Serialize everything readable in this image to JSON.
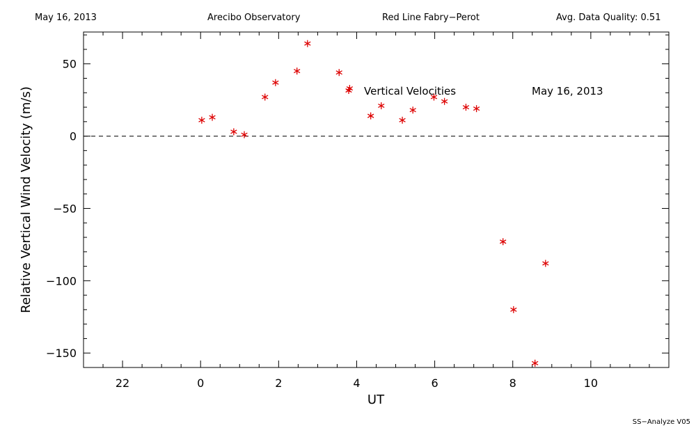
{
  "header": {
    "date": "May 16, 2013",
    "observatory": "Arecibo Observatory",
    "instrument": "Red Line Fabry−Perot",
    "quality": "Avg. Data Quality: 0.51"
  },
  "footer": "SS−Analyze V05",
  "colors": {
    "marker": "#dd0000",
    "axis": "#000000"
  },
  "chart_data": {
    "type": "scatter",
    "title": "",
    "xlabel": "UT",
    "ylabel": "Relative Vertical Wind Velocity (m/s)",
    "x_tick_labels": [
      "22",
      "0",
      "2",
      "4",
      "6",
      "8",
      "10"
    ],
    "y_tick_labels": [
      "50",
      "0",
      "−50",
      "−100",
      "−150"
    ],
    "x_tick_values": [
      22,
      0,
      2,
      4,
      6,
      8,
      10
    ],
    "y_tick_values": [
      50,
      0,
      -50,
      -100,
      -150
    ],
    "xlim": [
      -3.0,
      12.0
    ],
    "ylim": [
      -160,
      72
    ],
    "zero_line": true,
    "annotation_date": "May 16, 2013",
    "series": [
      {
        "name": "Vertical Velocities",
        "marker": "asterisk",
        "points": [
          {
            "x": 0.03,
            "y": 11
          },
          {
            "x": 0.3,
            "y": 13
          },
          {
            "x": 0.85,
            "y": 3
          },
          {
            "x": 1.12,
            "y": 1
          },
          {
            "x": 1.65,
            "y": 27
          },
          {
            "x": 1.92,
            "y": 37
          },
          {
            "x": 2.47,
            "y": 45
          },
          {
            "x": 2.74,
            "y": 64
          },
          {
            "x": 3.55,
            "y": 44
          },
          {
            "x": 3.82,
            "y": 33
          },
          {
            "x": 4.36,
            "y": 14
          },
          {
            "x": 4.63,
            "y": 21
          },
          {
            "x": 5.17,
            "y": 11
          },
          {
            "x": 5.44,
            "y": 18
          },
          {
            "x": 5.98,
            "y": 27
          },
          {
            "x": 6.25,
            "y": 24
          },
          {
            "x": 6.8,
            "y": 20
          },
          {
            "x": 7.07,
            "y": 19
          },
          {
            "x": 7.75,
            "y": -73
          },
          {
            "x": 8.02,
            "y": -120
          },
          {
            "x": 8.57,
            "y": -157
          },
          {
            "x": 8.84,
            "y": -88
          }
        ]
      }
    ]
  }
}
